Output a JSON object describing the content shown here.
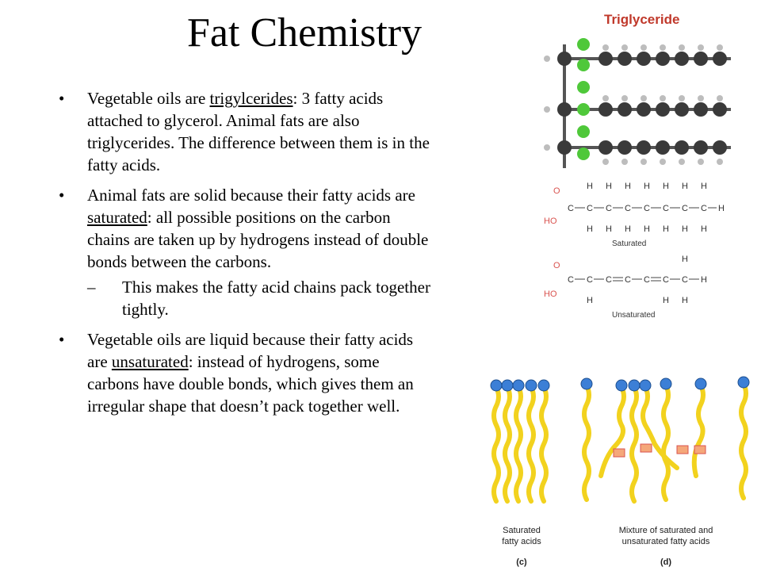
{
  "slide": {
    "title": "Fat Chemistry",
    "bullets": [
      {
        "pre": "Vegetable oils are ",
        "term": "trigylcerides",
        "post": ": 3 fatty acids attached to glycerol.  Animal fats are also triglycerides.  The difference between them is in the fatty acids."
      },
      {
        "pre": "Animal fats are solid because their fatty acids are ",
        "term": "saturated",
        "post": ": all possible positions on the carbon chains are taken up by hydrogens instead of double bonds between the carbons.",
        "sub": {
          "dash": "–",
          "text": "This makes the fatty acid chains pack together tightly."
        }
      },
      {
        "pre": "Vegetable oils are liquid because their fatty acids are ",
        "term": "unsaturated",
        "post": ": instead of hydrogens, some carbons have double bonds, which gives them an irregular shape that doesn’t pack together well."
      }
    ]
  },
  "figures": {
    "triglyceride": {
      "title": "Triglyceride"
    },
    "chemistry": {
      "saturated_label": "Saturated",
      "unsaturated_label": "Unsaturated",
      "atoms": {
        "H": "H",
        "C": "C",
        "O": "O",
        "HO": "HO"
      }
    },
    "lipids": {
      "saturated_caption_line1": "Saturated",
      "saturated_caption_line2": "fatty acids",
      "mixture_caption_line1": "Mixture of saturated and",
      "mixture_caption_line2": "unsaturated fatty acids",
      "panel_c": "(c)",
      "panel_d": "(d)"
    }
  },
  "colors": {
    "carbon": "#3a3a3a",
    "glycerol_oxygen": "#4fc83a",
    "tail": "#f2d21e",
    "head": "#3c7fd6",
    "kink": "#f5a77a",
    "title_red": "#c0392b"
  }
}
